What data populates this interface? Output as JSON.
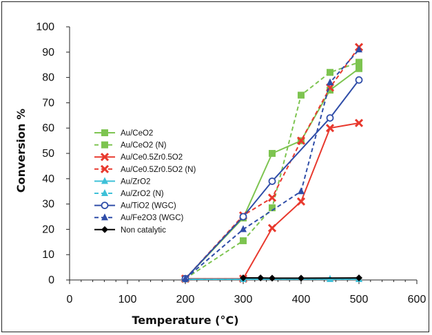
{
  "chart_data": {
    "type": "line",
    "xlabel": "Temperature (°C)",
    "ylabel": "Conversion %",
    "xlim": [
      0,
      600
    ],
    "ylim": [
      0,
      100
    ],
    "xticks": [
      0,
      100,
      200,
      300,
      400,
      500,
      600
    ],
    "yticks": [
      0,
      10,
      20,
      30,
      40,
      50,
      60,
      70,
      80,
      90,
      100
    ],
    "grid": false,
    "legend_position": "center-left",
    "series": [
      {
        "name": "Au/CeO2",
        "color": "#7DC450",
        "marker": "square",
        "dash": false,
        "x": [
          200,
          300,
          350,
          400,
          450,
          500
        ],
        "y": [
          0.5,
          24.5,
          50,
          55,
          75,
          83.5
        ]
      },
      {
        "name": "Au/CeO2 (N)",
        "color": "#7DC450",
        "marker": "square",
        "dash": true,
        "x": [
          200,
          300,
          350,
          400,
          450,
          500
        ],
        "y": [
          0.5,
          15.5,
          28.5,
          73,
          82,
          86
        ]
      },
      {
        "name": "Au/Ce0.5Zr0.5O2",
        "color": "#E8392E",
        "marker": "x",
        "dash": false,
        "x": [
          200,
          300,
          350,
          400,
          450,
          500
        ],
        "y": [
          0.5,
          0.5,
          20.5,
          31,
          60,
          62
        ]
      },
      {
        "name": "Au/Ce0.5Zr0.5O2 (N)",
        "color": "#E8392E",
        "marker": "x",
        "dash": true,
        "x": [
          200,
          300,
          350,
          400,
          450,
          500
        ],
        "y": [
          0.5,
          25.5,
          32.5,
          55,
          76,
          92
        ]
      },
      {
        "name": "Au/ZrO2",
        "color": "#3EC0D8",
        "marker": "triangle",
        "dash": false,
        "x": [
          200,
          300,
          450,
          500
        ],
        "y": [
          0.3,
          0.3,
          0.3,
          0.3
        ]
      },
      {
        "name": "Au/ZrO2 (N)",
        "color": "#3EC0D8",
        "marker": "triangle",
        "dash": true,
        "x": [
          200,
          300,
          450,
          500
        ],
        "y": [
          0.3,
          0.3,
          0.3,
          0.3
        ]
      },
      {
        "name": "Au/TiO2 (WGC)",
        "color": "#2F4DA8",
        "marker": "circle",
        "dash": false,
        "x": [
          200,
          300,
          350,
          450,
          500
        ],
        "y": [
          0.5,
          25,
          39,
          64,
          79
        ]
      },
      {
        "name": "Au/Fe2O3 (WGC)",
        "color": "#2F4DA8",
        "marker": "triangle",
        "dash": true,
        "x": [
          200,
          300,
          400,
          450,
          500
        ],
        "y": [
          0.5,
          20,
          35,
          78,
          91
        ]
      },
      {
        "name": "Non catalytic",
        "color": "#000000",
        "marker": "diamond",
        "dash": false,
        "x": [
          300,
          330,
          350,
          400,
          500
        ],
        "y": [
          0.8,
          0.8,
          0.7,
          0.7,
          0.8
        ]
      }
    ]
  }
}
